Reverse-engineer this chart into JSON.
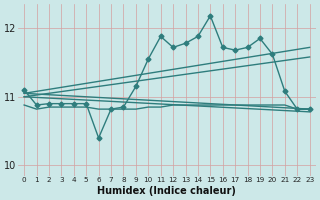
{
  "title": "",
  "xlabel": "Humidex (Indice chaleur)",
  "xlim": [
    -0.5,
    23.5
  ],
  "ylim": [
    9.85,
    12.35
  ],
  "yticks": [
    10,
    11,
    12
  ],
  "xticks": [
    0,
    1,
    2,
    3,
    4,
    5,
    6,
    7,
    8,
    9,
    10,
    11,
    12,
    13,
    14,
    15,
    16,
    17,
    18,
    19,
    20,
    21,
    22,
    23
  ],
  "bg_color": "#cce8e8",
  "line_color": "#2e7d7d",
  "grid_color": "#aad4d4",
  "series_main": {
    "x": [
      0,
      1,
      2,
      3,
      4,
      5,
      6,
      7,
      8,
      9,
      10,
      11,
      12,
      13,
      14,
      15,
      16,
      17,
      18,
      19,
      20,
      21,
      22,
      23
    ],
    "y": [
      11.1,
      10.88,
      10.9,
      10.9,
      10.9,
      10.9,
      10.4,
      10.82,
      10.85,
      11.15,
      11.55,
      11.88,
      11.72,
      11.78,
      11.88,
      12.18,
      11.72,
      11.68,
      11.72,
      11.85,
      11.62,
      11.08,
      10.82,
      10.82
    ]
  },
  "series_flat": {
    "x": [
      0,
      1,
      2,
      3,
      4,
      5,
      6,
      7,
      8,
      9,
      10,
      11,
      12,
      13,
      14,
      15,
      16,
      17,
      18,
      19,
      20,
      21,
      22,
      23
    ],
    "y": [
      10.88,
      10.82,
      10.85,
      10.85,
      10.85,
      10.85,
      10.82,
      10.82,
      10.82,
      10.82,
      10.85,
      10.85,
      10.88,
      10.88,
      10.88,
      10.88,
      10.88,
      10.88,
      10.88,
      10.88,
      10.88,
      10.88,
      10.82,
      10.82
    ]
  },
  "diag_lines": [
    {
      "x0": 0,
      "y0": 11.05,
      "x1": 23,
      "y1": 11.72
    },
    {
      "x0": 0,
      "y0": 11.0,
      "x1": 23,
      "y1": 11.58
    },
    {
      "x0": 0,
      "y0": 11.05,
      "x1": 23,
      "y1": 10.82
    },
    {
      "x0": 0,
      "y0": 11.0,
      "x1": 23,
      "y1": 10.78
    }
  ]
}
